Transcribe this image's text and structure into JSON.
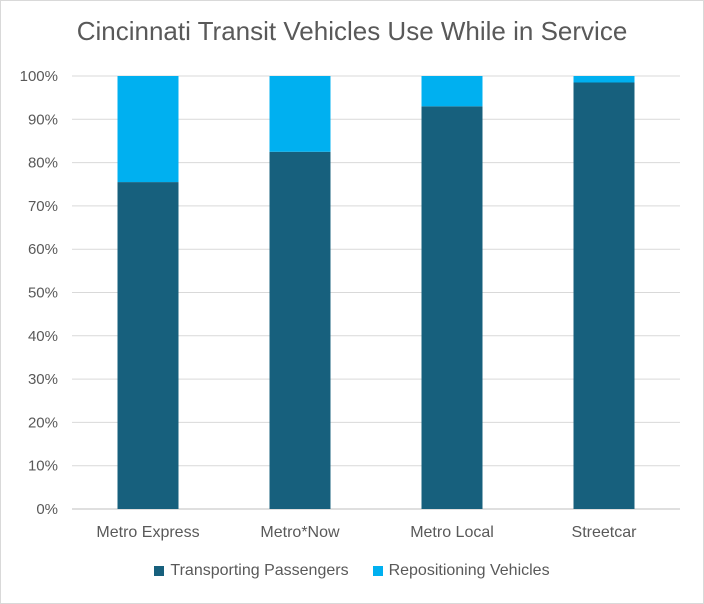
{
  "chart_data": {
    "type": "bar",
    "stacked": true,
    "title": "Cincinnati Transit Vehicles Use While in Service",
    "xlabel": "",
    "ylabel": "",
    "categories": [
      "Metro Express",
      "Metro*Now",
      "Metro Local",
      "Streetcar"
    ],
    "series": [
      {
        "name": "Transporting Passengers",
        "values": [
          75.5,
          82.5,
          93,
          98.5
        ],
        "color": "#17607d"
      },
      {
        "name": "Repositioning Vehicles",
        "values": [
          24.5,
          17.5,
          7,
          1.5
        ],
        "color": "#00b0f0"
      }
    ],
    "ylim": [
      0,
      100
    ],
    "yticks": [
      "0%",
      "10%",
      "20%",
      "30%",
      "40%",
      "50%",
      "60%",
      "70%",
      "80%",
      "90%",
      "100%"
    ],
    "grid": true,
    "legend": "bottom"
  }
}
